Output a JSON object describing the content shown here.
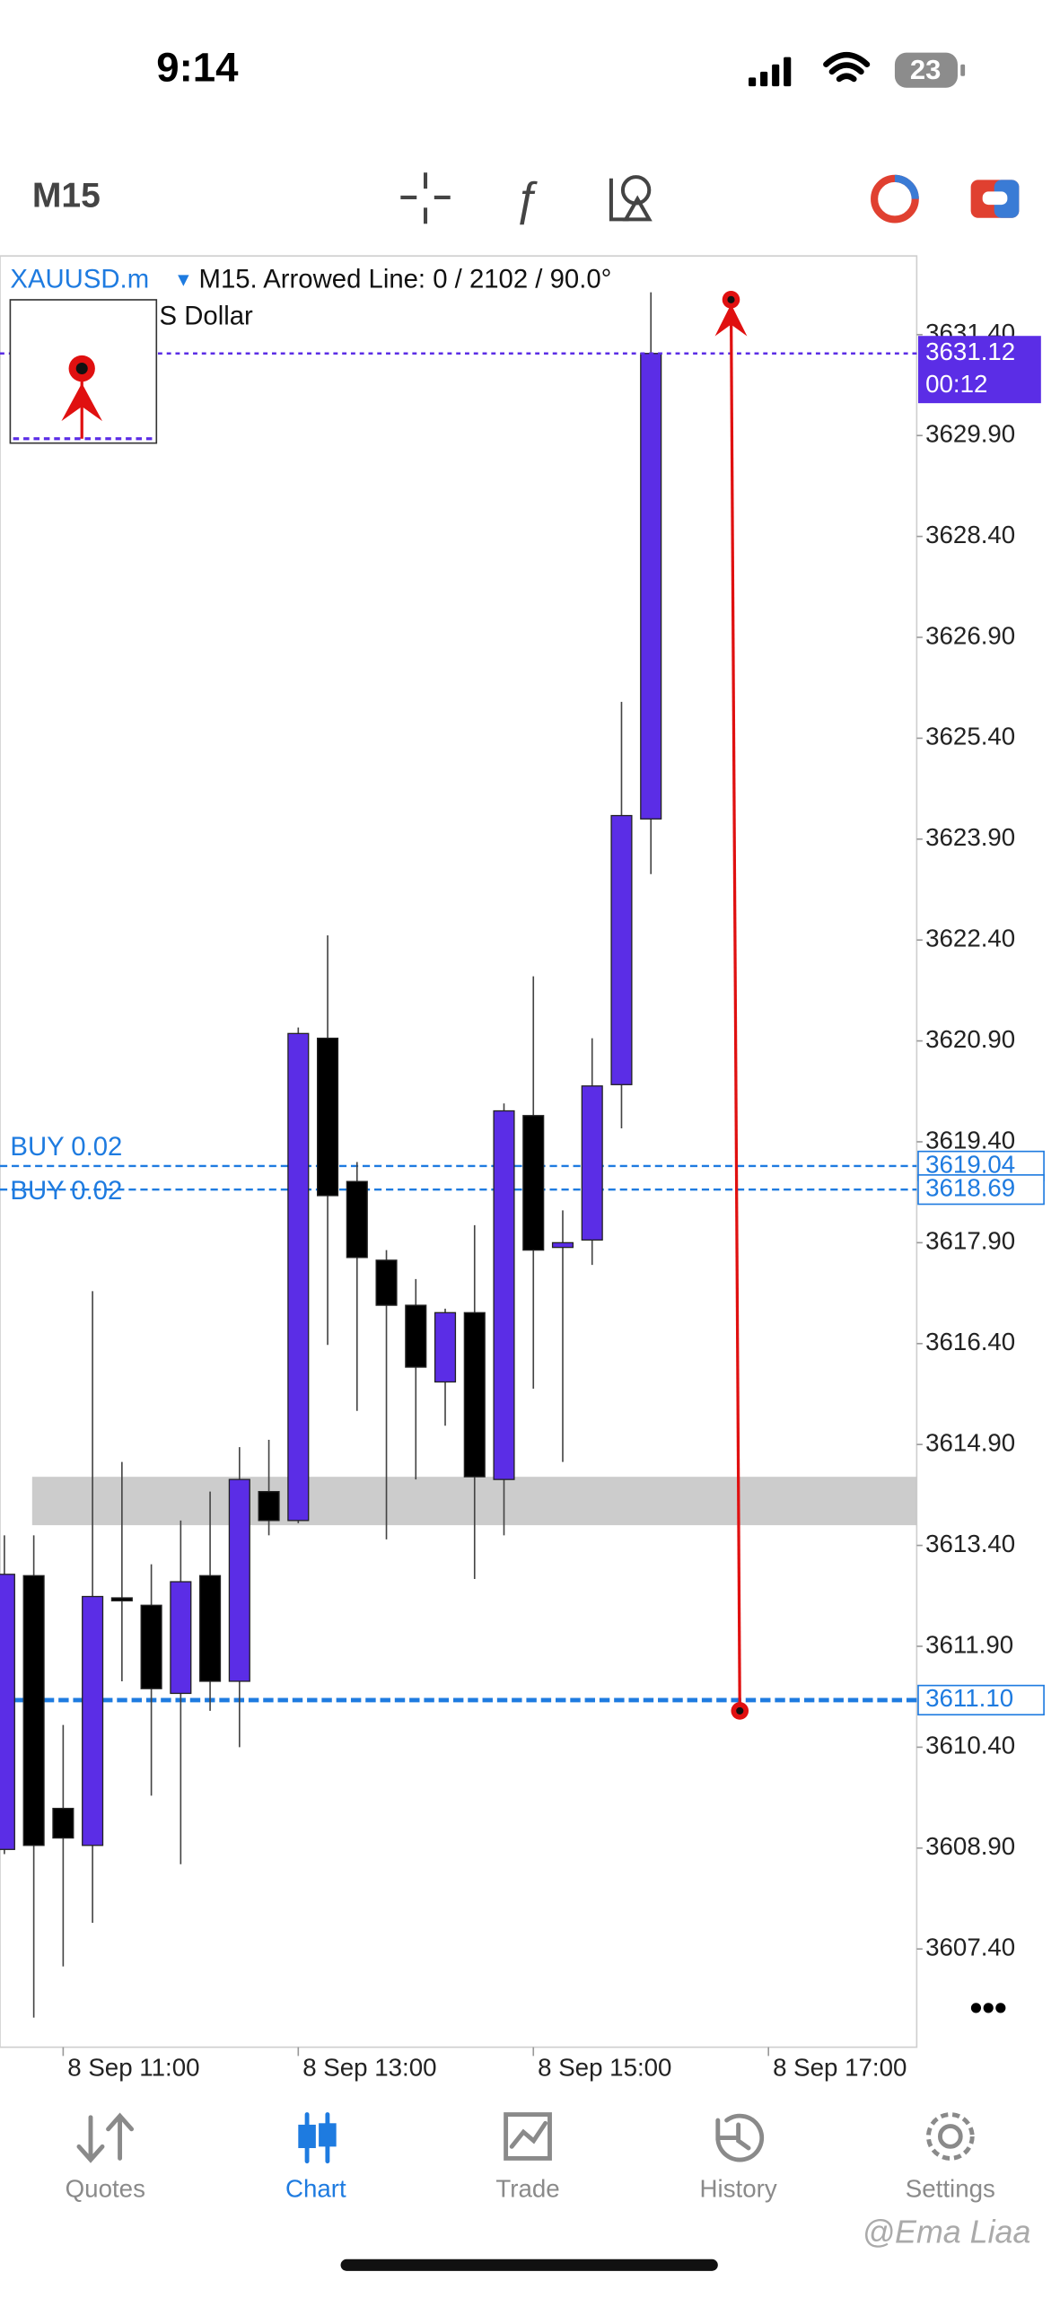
{
  "status_bar": {
    "time": "9:14",
    "battery": "23"
  },
  "toolbar": {
    "timeframe": "M15"
  },
  "chart_data": {
    "type": "candlestick",
    "title": "XAUUSD.m",
    "subtitle": "M15. Arrowed Line: 0 / 2102 / 90.0°",
    "description": "S Dollar",
    "bull_color": "#5b2de6",
    "bear_color": "#000000",
    "categories": [
      null,
      null,
      "8 Sep 11:00",
      null,
      null,
      null,
      null,
      null,
      null,
      null,
      "8 Sep 13:00",
      null,
      null,
      null,
      null,
      null,
      null,
      null,
      "8 Sep 15:00",
      null,
      null,
      null,
      null,
      null,
      null,
      null,
      "8 Sep 17:00"
    ],
    "open": [
      3608.88,
      3612.95,
      3609.49,
      3608.94,
      3612.62,
      3612.51,
      3611.2,
      3612.95,
      3611.38,
      3614.2,
      3613.77,
      3620.94,
      3618.81,
      3617.64,
      3616.97,
      3615.83,
      3616.86,
      3614.38,
      3619.79,
      3617.83,
      3617.94,
      3620.25,
      3624.2,
      null,
      null,
      null,
      null
    ],
    "high": [
      3613.55,
      3613.55,
      3610.73,
      3617.18,
      3614.64,
      3613.12,
      3613.77,
      3614.2,
      3614.86,
      3614.97,
      3621.1,
      3622.47,
      3619.1,
      3617.79,
      3617.36,
      3616.92,
      3618.16,
      3619.97,
      3621.86,
      3618.38,
      3620.94,
      3625.94,
      3632.03,
      null,
      null,
      null,
      null
    ],
    "low": [
      3608.81,
      3606.38,
      3607.14,
      3607.79,
      3611.38,
      3609.68,
      3608.66,
      3610.94,
      3610.4,
      3613.55,
      3613.73,
      3616.38,
      3615.4,
      3613.49,
      3614.38,
      3615.18,
      3612.9,
      3613.55,
      3615.73,
      3614.64,
      3617.57,
      3619.6,
      3623.38,
      null,
      null,
      null,
      null
    ],
    "close": [
      3612.97,
      3608.94,
      3609.05,
      3612.64,
      3612.58,
      3611.27,
      3612.86,
      3611.38,
      3614.38,
      3613.77,
      3621.01,
      3618.6,
      3617.68,
      3616.97,
      3616.05,
      3616.86,
      3614.42,
      3619.86,
      3617.79,
      3617.9,
      3620.23,
      3624.25,
      3631.12,
      null,
      null,
      null,
      null
    ],
    "ylim": [
      3605.94,
      3632.57
    ],
    "yticks": [
      {
        "value": 3631.4,
        "label": "3631.40"
      },
      {
        "value": 3629.9,
        "label": "3629.90"
      },
      {
        "value": 3628.4,
        "label": "3628.40"
      },
      {
        "value": 3626.9,
        "label": "3626.90"
      },
      {
        "value": 3625.4,
        "label": "3625.40"
      },
      {
        "value": 3623.9,
        "label": "3623.90"
      },
      {
        "value": 3622.4,
        "label": "3622.40"
      },
      {
        "value": 3620.9,
        "label": "3620.90"
      },
      {
        "value": 3619.4,
        "label": "3619.40"
      },
      {
        "value": 3617.9,
        "label": "3617.90"
      },
      {
        "value": 3616.4,
        "label": "3616.40"
      },
      {
        "value": 3614.9,
        "label": "3614.90"
      },
      {
        "value": 3613.4,
        "label": "3613.40"
      },
      {
        "value": 3611.9,
        "label": "3611.90"
      },
      {
        "value": 3610.4,
        "label": "3610.40"
      },
      {
        "value": 3608.9,
        "label": "3608.90"
      },
      {
        "value": 3607.4,
        "label": "3607.40"
      }
    ],
    "price_line": {
      "value": 3631.12,
      "label": "3631.12",
      "timer": "00:12",
      "color": "#5b2de6"
    },
    "orders": [
      {
        "name": "BUY 0.02",
        "value": 3619.04,
        "label": "3619.04"
      },
      {
        "name": "BUY 0.02",
        "value": 3618.69,
        "label": "3618.69"
      },
      {
        "value": 3611.1,
        "label": "3611.10"
      }
    ],
    "zone": {
      "from": 3613.7,
      "to": 3614.42,
      "color": "#c3c3c3"
    },
    "arrow": {
      "from": 3610.94,
      "to": 3631.92,
      "color": "#e01010"
    }
  },
  "tabs": [
    "Quotes",
    "Chart",
    "Trade",
    "History",
    "Settings"
  ],
  "active_tab": 1,
  "watermark": "@Ema Liaa"
}
